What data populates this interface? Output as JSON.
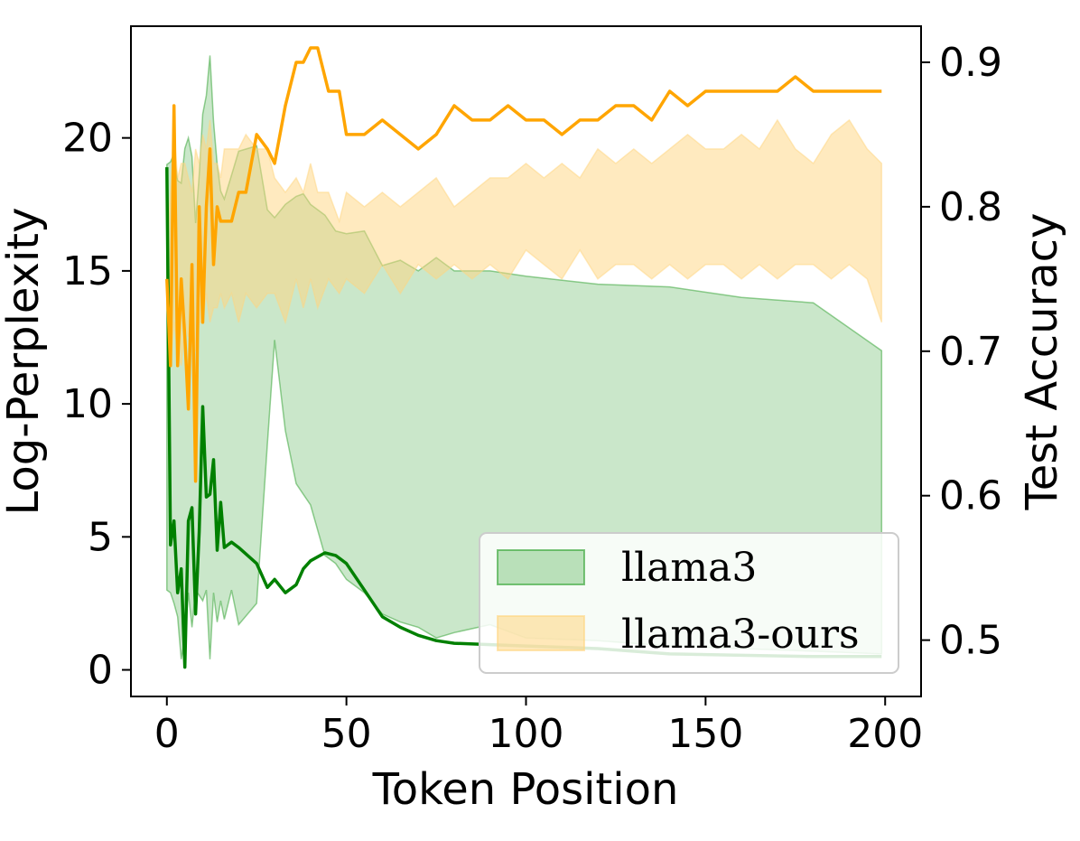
{
  "chart_data": {
    "type": "line",
    "xlabel": "Token Position",
    "ylabel_left": "Log-Perplexity",
    "ylabel_right": "Test Accuracy",
    "xlim": [
      -10,
      210
    ],
    "ylim_left": [
      -1,
      24.2
    ],
    "ylim_right": [
      0.461,
      0.925
    ],
    "x_ticks": [
      0,
      50,
      100,
      150,
      200
    ],
    "y_ticks_left": [
      0,
      5,
      10,
      15,
      20
    ],
    "y_ticks_right": [
      0.5,
      0.6,
      0.7,
      0.8,
      0.9
    ],
    "legend_placement": "lower-right",
    "grid": false,
    "colors": {
      "llama3_line": "#008000",
      "llama3_band": "#2ca02c",
      "ours_line": "#ffa500",
      "ours_band": "#ffd580"
    },
    "series": [
      {
        "name": "llama3",
        "axis": "left",
        "x": [
          0,
          1,
          2,
          3,
          4,
          5,
          6,
          7,
          8,
          9,
          10,
          11,
          12,
          13,
          14,
          15,
          16,
          18,
          20,
          25,
          28,
          30,
          33,
          36,
          38,
          40,
          44,
          47,
          50,
          55,
          60,
          65,
          70,
          75,
          80,
          90,
          100,
          120,
          140,
          160,
          180,
          199
        ],
        "mean": [
          18.9,
          4.7,
          5.6,
          2.9,
          3.8,
          0.1,
          5.6,
          6.1,
          2.1,
          5.2,
          9.9,
          6.5,
          6.6,
          7.9,
          4.5,
          6.3,
          4.6,
          4.8,
          4.6,
          4.0,
          3.1,
          3.4,
          2.9,
          3.2,
          3.8,
          4.1,
          4.4,
          4.3,
          4.0,
          3.0,
          2.0,
          1.6,
          1.3,
          1.1,
          1.0,
          0.95,
          0.9,
          0.8,
          0.6,
          0.55,
          0.5,
          0.5
        ],
        "upper": [
          19.0,
          19.1,
          19.4,
          18.4,
          18.3,
          19.6,
          20.0,
          19.3,
          16.8,
          18.6,
          20.9,
          21.6,
          23.1,
          20.6,
          19.0,
          18.0,
          17.7,
          18.6,
          19.5,
          19.7,
          17.3,
          17.0,
          17.5,
          17.8,
          17.9,
          17.5,
          17.1,
          16.5,
          16.4,
          16.5,
          15.2,
          15.4,
          15.0,
          15.5,
          15.0,
          15.0,
          14.8,
          14.5,
          14.4,
          14.0,
          13.8,
          12.0
        ],
        "lower": [
          3.0,
          2.9,
          2.5,
          2.0,
          0.4,
          1.2,
          2.9,
          1.6,
          3.0,
          2.8,
          2.6,
          3.0,
          0.4,
          2.9,
          1.8,
          2.6,
          1.9,
          3.0,
          1.7,
          2.5,
          8.5,
          12.4,
          9.0,
          7.0,
          6.6,
          6.2,
          4.3,
          4.0,
          3.4,
          2.9,
          2.1,
          1.8,
          1.6,
          1.2,
          1.4,
          1.7,
          1.2,
          1.1,
          0.9,
          0.8,
          0.7,
          0.6
        ]
      },
      {
        "name": "llama3-ours",
        "axis": "right",
        "x": [
          0,
          1,
          2,
          3,
          4,
          5,
          6,
          7,
          8,
          9,
          10,
          11,
          12,
          13,
          14,
          15,
          16,
          18,
          20,
          22,
          25,
          28,
          30,
          33,
          36,
          38,
          40,
          42,
          45,
          48,
          50,
          55,
          60,
          65,
          70,
          75,
          80,
          85,
          90,
          95,
          100,
          105,
          110,
          115,
          120,
          125,
          130,
          135,
          140,
          145,
          150,
          155,
          160,
          165,
          170,
          175,
          180,
          185,
          190,
          195,
          199
        ],
        "mean": [
          0.75,
          0.69,
          0.87,
          0.69,
          0.75,
          0.71,
          0.66,
          0.76,
          0.61,
          0.8,
          0.72,
          0.8,
          0.84,
          0.76,
          0.8,
          0.79,
          0.79,
          0.79,
          0.81,
          0.81,
          0.85,
          0.84,
          0.83,
          0.87,
          0.9,
          0.9,
          0.91,
          0.91,
          0.88,
          0.88,
          0.85,
          0.85,
          0.86,
          0.85,
          0.84,
          0.85,
          0.87,
          0.86,
          0.86,
          0.87,
          0.86,
          0.86,
          0.85,
          0.86,
          0.86,
          0.87,
          0.87,
          0.86,
          0.88,
          0.87,
          0.88,
          0.88,
          0.88,
          0.88,
          0.88,
          0.89,
          0.88,
          0.88,
          0.88,
          0.88,
          0.88
        ],
        "upper": [
          0.77,
          0.81,
          0.85,
          0.82,
          0.83,
          0.83,
          0.82,
          0.81,
          0.84,
          0.83,
          0.85,
          0.84,
          0.86,
          0.83,
          0.83,
          0.82,
          0.84,
          0.84,
          0.84,
          0.85,
          0.84,
          0.84,
          0.82,
          0.81,
          0.82,
          0.81,
          0.83,
          0.81,
          0.81,
          0.79,
          0.81,
          0.8,
          0.81,
          0.8,
          0.81,
          0.82,
          0.8,
          0.81,
          0.82,
          0.82,
          0.83,
          0.82,
          0.83,
          0.82,
          0.84,
          0.83,
          0.84,
          0.83,
          0.84,
          0.85,
          0.84,
          0.84,
          0.85,
          0.84,
          0.86,
          0.84,
          0.83,
          0.85,
          0.86,
          0.84,
          0.83
        ],
        "lower": [
          0.73,
          0.69,
          0.72,
          0.7,
          0.69,
          0.72,
          0.71,
          0.73,
          0.7,
          0.72,
          0.72,
          0.74,
          0.72,
          0.73,
          0.73,
          0.74,
          0.73,
          0.74,
          0.72,
          0.74,
          0.73,
          0.74,
          0.74,
          0.72,
          0.75,
          0.73,
          0.75,
          0.73,
          0.75,
          0.74,
          0.75,
          0.74,
          0.76,
          0.74,
          0.76,
          0.75,
          0.76,
          0.75,
          0.76,
          0.75,
          0.77,
          0.76,
          0.75,
          0.77,
          0.75,
          0.76,
          0.76,
          0.75,
          0.76,
          0.75,
          0.76,
          0.76,
          0.75,
          0.76,
          0.75,
          0.76,
          0.76,
          0.75,
          0.76,
          0.75,
          0.72
        ]
      }
    ]
  }
}
